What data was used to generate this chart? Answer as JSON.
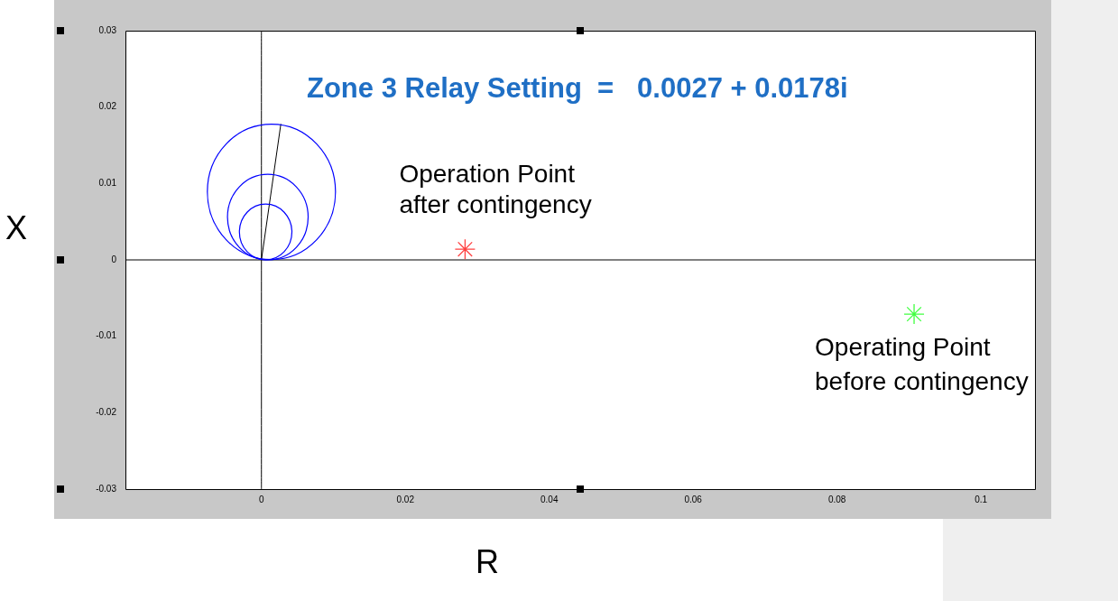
{
  "chart_data": {
    "type": "line",
    "xlabel": "R",
    "ylabel": "X",
    "annotations": [
      "Zone 3 Relay Setting  =   0.0027 + 0.0178i",
      {
        "text": "Operation Point\nafter contingency",
        "x": 0.0283,
        "y": 0.0014
      },
      {
        "text": "Operating Point\nbefore contingency",
        "x": 0.0907,
        "y": -0.0071
      }
    ],
    "xlim": [
      -0.0189,
      0.1075
    ],
    "xticks": [
      0,
      0.02,
      0.04,
      0.06,
      0.08,
      0.1
    ],
    "ylim": [
      -0.03,
      0.03
    ],
    "yticks": [
      -0.03,
      -0.02,
      -0.01,
      0,
      0.01,
      0.02,
      0.03
    ],
    "grid": false,
    "legend": false,
    "series": [
      {
        "type": "line",
        "color": "#000000",
        "marker": "none",
        "x": [
          0,
          0
        ],
        "values": [
          -0.03,
          0.03
        ]
      },
      {
        "type": "line",
        "color": "#000000",
        "marker": "none",
        "x": [
          -0.0189,
          0.1075
        ],
        "values": [
          0,
          0
        ]
      },
      {
        "type": "line",
        "color": "#000000",
        "marker": "none",
        "x": [
          0,
          0.0027
        ],
        "values": [
          0,
          0.0178
        ]
      },
      {
        "type": "scatter",
        "color": "#ff4040",
        "marker": "cross",
        "x": [
          0.0283
        ],
        "values": [
          0.0014
        ]
      },
      {
        "type": "scatter",
        "color": "#40ff40",
        "marker": "cross",
        "x": [
          0.0907
        ],
        "values": [
          -0.0071
        ]
      }
    ]
  }
}
